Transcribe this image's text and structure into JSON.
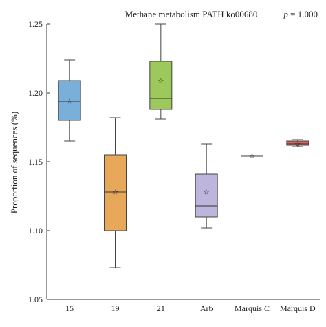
{
  "chart_data": {
    "type": "boxplot",
    "title": "Methane metabolism PATH ko00680",
    "p_value_prefix": "p",
    "p_value_text": " = 1.000",
    "ylabel": "Proportion of sequences (%)",
    "xlabel": "",
    "ylim": [
      1.05,
      1.25
    ],
    "yticks": [
      "1.05",
      "1.10",
      "1.15",
      "1.20",
      "1.25"
    ],
    "grid": false,
    "mean_marker": "star",
    "categories": [
      "15",
      "19",
      "21",
      "Arb",
      "Marquis C",
      "Marquis D"
    ],
    "boxes": [
      {
        "name": "15",
        "min": 1.165,
        "q1": 1.18,
        "median": 1.194,
        "q3": 1.209,
        "max": 1.224,
        "mean": 1.194,
        "color": "#7aafd9"
      },
      {
        "name": "19",
        "min": 1.073,
        "q1": 1.1,
        "median": 1.128,
        "q3": 1.155,
        "max": 1.182,
        "mean": 1.128,
        "color": "#e8a85a"
      },
      {
        "name": "21",
        "min": 1.181,
        "q1": 1.188,
        "median": 1.196,
        "q3": 1.223,
        "max": 1.25,
        "mean": 1.209,
        "color": "#9cc85c"
      },
      {
        "name": "Arb",
        "min": 1.102,
        "q1": 1.11,
        "median": 1.118,
        "q3": 1.141,
        "max": 1.163,
        "mean": 1.128,
        "color": "#bdb5dc"
      },
      {
        "name": "Marquis C",
        "min": 1.1545,
        "q1": 1.1545,
        "median": 1.1545,
        "q3": 1.1545,
        "max": 1.1545,
        "mean": 1.1545,
        "color": "#c7a6c0"
      },
      {
        "name": "Marquis D",
        "min": 1.161,
        "q1": 1.162,
        "median": 1.163,
        "q3": 1.165,
        "max": 1.166,
        "mean": 1.163,
        "color": "#d4665e"
      }
    ]
  }
}
